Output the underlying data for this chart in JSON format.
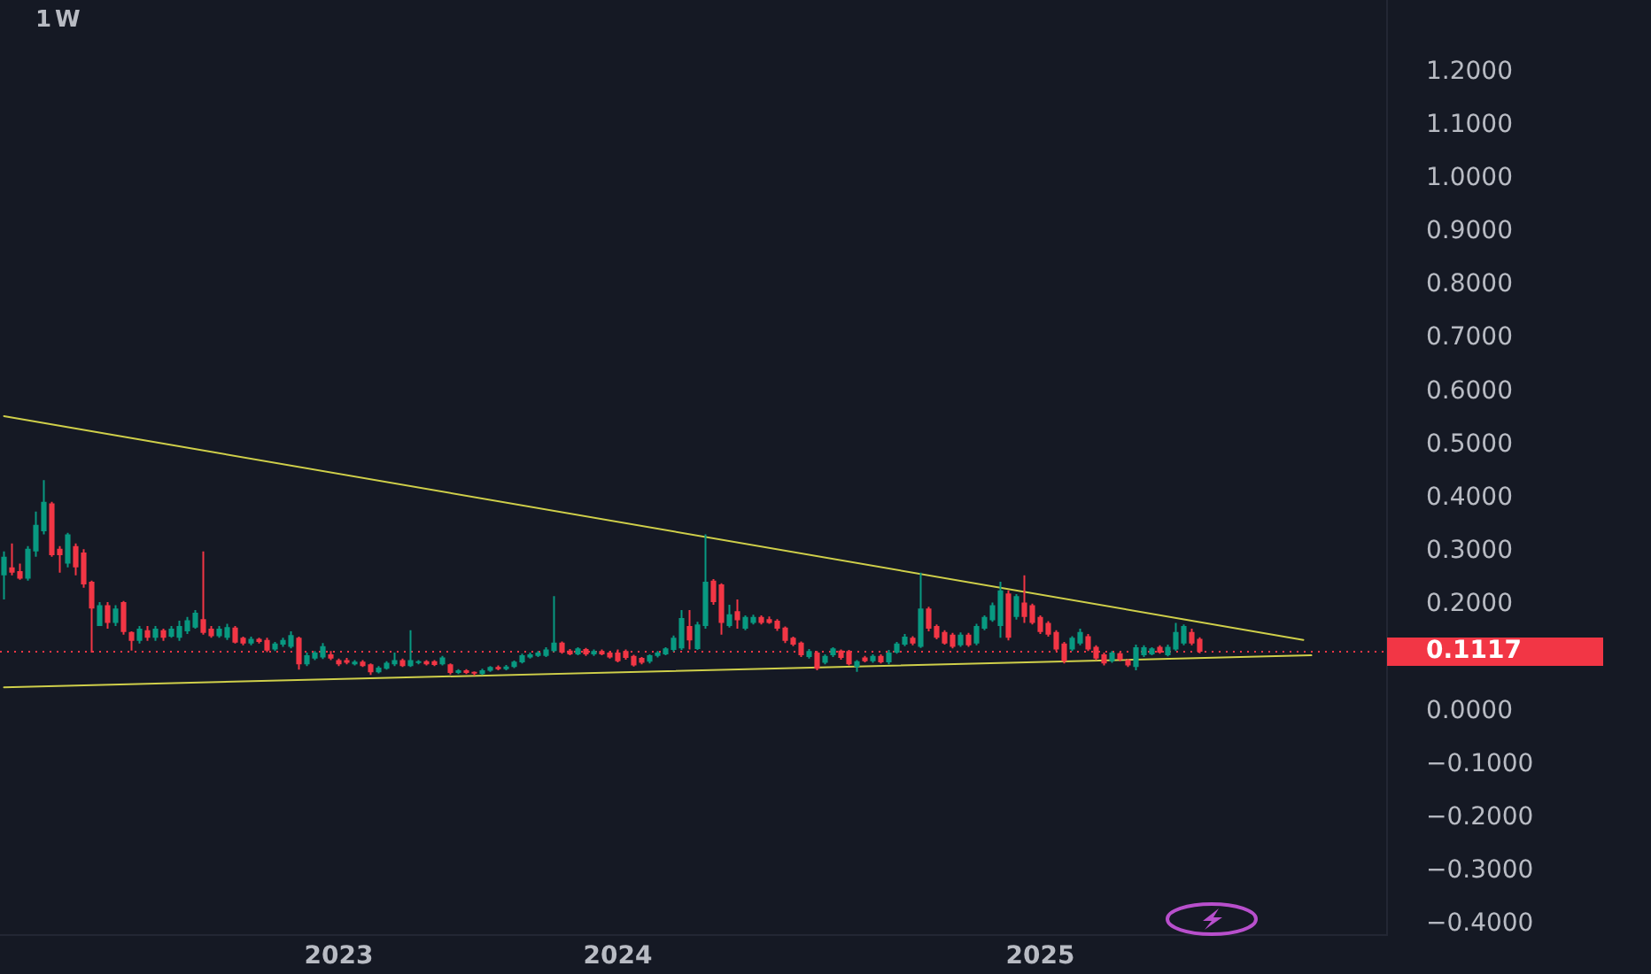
{
  "chart_data": {
    "type": "candlestick",
    "title": "1W",
    "categories": [
      null,
      null,
      null,
      null,
      null,
      null,
      null,
      null,
      null,
      null,
      null,
      null,
      null,
      null,
      null,
      null,
      null,
      null,
      null,
      null,
      null,
      null,
      null,
      null,
      null,
      null,
      null,
      null,
      null,
      null,
      null,
      null,
      null,
      null,
      null,
      null,
      null,
      null,
      null,
      null,
      null,
      null,
      "2023",
      null,
      null,
      null,
      null,
      null,
      null,
      null,
      null,
      null,
      null,
      null,
      null,
      null,
      null,
      null,
      null,
      null,
      null,
      null,
      null,
      null,
      null,
      null,
      null,
      null,
      null,
      null,
      null,
      null,
      null,
      null,
      null,
      null,
      null,
      "2024",
      null,
      null,
      null,
      null,
      null,
      null,
      null,
      null,
      null,
      null,
      null,
      null,
      null,
      null,
      null,
      null,
      null,
      null,
      null,
      null,
      null,
      null,
      null,
      null,
      null,
      null,
      null,
      null,
      null,
      null,
      null,
      null,
      null,
      null,
      null,
      null,
      null,
      null,
      null,
      null,
      null,
      null,
      null,
      null,
      null,
      null,
      null,
      null,
      null,
      null,
      null,
      null,
      "2025",
      null,
      null,
      null,
      null,
      null,
      null,
      null,
      null,
      null,
      null,
      null,
      null,
      null,
      null,
      null,
      null,
      null,
      null,
      null,
      null,
      null,
      null,
      null,
      null,
      null,
      null,
      null,
      null,
      null,
      null,
      null,
      null,
      null,
      null,
      null,
      null,
      null,
      null,
      null,
      null,
      null,
      null,
      null
    ],
    "ohlc": [
      [
        0.255,
        0.3,
        0.21,
        0.29
      ],
      [
        0.27,
        0.315,
        0.255,
        0.26
      ],
      [
        0.263,
        0.277,
        0.247,
        0.249
      ],
      [
        0.249,
        0.31,
        0.245,
        0.305
      ],
      [
        0.3,
        0.375,
        0.29,
        0.35
      ],
      [
        0.338,
        0.434,
        0.332,
        0.393
      ],
      [
        0.39,
        0.393,
        0.29,
        0.293
      ],
      [
        0.305,
        0.31,
        0.26,
        0.293
      ],
      [
        0.277,
        0.335,
        0.27,
        0.332
      ],
      [
        0.31,
        0.315,
        0.255,
        0.27
      ],
      [
        0.298,
        0.304,
        0.232,
        0.238
      ],
      [
        0.243,
        0.245,
        0.11,
        0.193
      ],
      [
        0.16,
        0.205,
        0.16,
        0.199
      ],
      [
        0.199,
        0.205,
        0.155,
        0.166
      ],
      [
        0.166,
        0.199,
        0.16,
        0.193
      ],
      [
        0.205,
        0.207,
        0.144,
        0.149
      ],
      [
        0.149,
        0.15,
        0.114,
        0.132
      ],
      [
        0.132,
        0.16,
        0.127,
        0.155
      ],
      [
        0.152,
        0.16,
        0.132,
        0.138
      ],
      [
        0.138,
        0.16,
        0.132,
        0.155
      ],
      [
        0.152,
        0.155,
        0.132,
        0.138
      ],
      [
        0.14,
        0.16,
        0.138,
        0.155
      ],
      [
        0.138,
        0.17,
        0.132,
        0.16
      ],
      [
        0.15,
        0.177,
        0.145,
        0.171
      ],
      [
        0.157,
        0.19,
        0.155,
        0.185
      ],
      [
        0.173,
        0.3,
        0.144,
        0.147
      ],
      [
        0.155,
        0.16,
        0.138,
        0.141
      ],
      [
        0.141,
        0.16,
        0.138,
        0.155
      ],
      [
        0.138,
        0.164,
        0.134,
        0.158
      ],
      [
        0.157,
        0.16,
        0.127,
        0.129
      ],
      [
        0.138,
        0.14,
        0.124,
        0.127
      ],
      [
        0.127,
        0.14,
        0.124,
        0.136
      ],
      [
        0.136,
        0.138,
        0.127,
        0.13
      ],
      [
        0.134,
        0.138,
        0.111,
        0.114
      ],
      [
        0.116,
        0.13,
        0.113,
        0.127
      ],
      [
        0.125,
        0.138,
        0.121,
        0.134
      ],
      [
        0.121,
        0.15,
        0.118,
        0.143
      ],
      [
        0.138,
        0.14,
        0.078,
        0.088
      ],
      [
        0.088,
        0.11,
        0.085,
        0.105
      ],
      [
        0.099,
        0.113,
        0.096,
        0.11
      ],
      [
        0.101,
        0.128,
        0.098,
        0.122
      ],
      [
        0.107,
        0.113,
        0.096,
        0.099
      ],
      [
        0.096,
        0.099,
        0.085,
        0.088
      ],
      [
        0.096,
        0.1,
        0.088,
        0.091
      ],
      [
        0.088,
        0.096,
        0.086,
        0.093
      ],
      [
        0.093,
        0.096,
        0.083,
        0.085
      ],
      [
        0.088,
        0.09,
        0.068,
        0.073
      ],
      [
        0.073,
        0.085,
        0.071,
        0.082
      ],
      [
        0.08,
        0.094,
        0.078,
        0.091
      ],
      [
        0.088,
        0.11,
        0.085,
        0.096
      ],
      [
        0.096,
        0.099,
        0.083,
        0.085
      ],
      [
        0.085,
        0.152,
        0.083,
        0.096
      ],
      [
        0.091,
        0.096,
        0.088,
        0.094
      ],
      [
        0.094,
        0.096,
        0.086,
        0.088
      ],
      [
        0.094,
        0.096,
        0.085,
        0.087
      ],
      [
        0.088,
        0.104,
        0.086,
        0.101
      ],
      [
        0.088,
        0.09,
        0.069,
        0.072
      ],
      [
        0.072,
        0.079,
        0.07,
        0.077
      ],
      [
        0.077,
        0.079,
        0.07,
        0.072
      ],
      [
        0.074,
        0.075,
        0.067,
        0.071
      ],
      [
        0.07,
        0.08,
        0.068,
        0.077
      ],
      [
        0.076,
        0.085,
        0.074,
        0.083
      ],
      [
        0.083,
        0.086,
        0.077,
        0.079
      ],
      [
        0.079,
        0.087,
        0.077,
        0.084
      ],
      [
        0.083,
        0.095,
        0.081,
        0.093
      ],
      [
        0.092,
        0.108,
        0.09,
        0.105
      ],
      [
        0.101,
        0.11,
        0.099,
        0.107
      ],
      [
        0.104,
        0.113,
        0.102,
        0.11
      ],
      [
        0.104,
        0.12,
        0.102,
        0.116
      ],
      [
        0.113,
        0.216,
        0.111,
        0.129
      ],
      [
        0.129,
        0.131,
        0.108,
        0.11
      ],
      [
        0.114,
        0.117,
        0.105,
        0.107
      ],
      [
        0.107,
        0.12,
        0.105,
        0.118
      ],
      [
        0.117,
        0.119,
        0.104,
        0.107
      ],
      [
        0.107,
        0.116,
        0.104,
        0.113
      ],
      [
        0.113,
        0.116,
        0.105,
        0.107
      ],
      [
        0.11,
        0.113,
        0.099,
        0.101
      ],
      [
        0.11,
        0.116,
        0.092,
        0.094
      ],
      [
        0.113,
        0.116,
        0.097,
        0.1
      ],
      [
        0.104,
        0.106,
        0.084,
        0.086
      ],
      [
        0.1,
        0.102,
        0.088,
        0.091
      ],
      [
        0.093,
        0.107,
        0.09,
        0.105
      ],
      [
        0.104,
        0.113,
        0.101,
        0.11
      ],
      [
        0.107,
        0.12,
        0.105,
        0.118
      ],
      [
        0.115,
        0.142,
        0.112,
        0.138
      ],
      [
        0.118,
        0.19,
        0.115,
        0.175
      ],
      [
        0.16,
        0.19,
        0.116,
        0.133
      ],
      [
        0.117,
        0.168,
        0.115,
        0.163
      ],
      [
        0.16,
        0.332,
        0.155,
        0.243
      ],
      [
        0.245,
        0.248,
        0.2,
        0.205
      ],
      [
        0.238,
        0.24,
        0.144,
        0.166
      ],
      [
        0.16,
        0.2,
        0.157,
        0.182
      ],
      [
        0.188,
        0.21,
        0.155,
        0.171
      ],
      [
        0.155,
        0.18,
        0.152,
        0.177
      ],
      [
        0.166,
        0.181,
        0.163,
        0.177
      ],
      [
        0.177,
        0.18,
        0.163,
        0.166
      ],
      [
        0.173,
        0.178,
        0.164,
        0.166
      ],
      [
        0.17,
        0.173,
        0.151,
        0.155
      ],
      [
        0.157,
        0.159,
        0.128,
        0.132
      ],
      [
        0.138,
        0.14,
        0.122,
        0.125
      ],
      [
        0.129,
        0.131,
        0.102,
        0.105
      ],
      [
        0.102,
        0.117,
        0.099,
        0.113
      ],
      [
        0.11,
        0.113,
        0.077,
        0.08
      ],
      [
        0.091,
        0.107,
        0.088,
        0.104
      ],
      [
        0.105,
        0.12,
        0.102,
        0.118
      ],
      [
        0.114,
        0.116,
        0.097,
        0.1
      ],
      [
        0.113,
        0.115,
        0.086,
        0.088
      ],
      [
        0.083,
        0.096,
        0.074,
        0.094
      ],
      [
        0.101,
        0.104,
        0.092,
        0.094
      ],
      [
        0.094,
        0.107,
        0.091,
        0.104
      ],
      [
        0.104,
        0.107,
        0.09,
        0.092
      ],
      [
        0.092,
        0.115,
        0.088,
        0.11
      ],
      [
        0.11,
        0.13,
        0.108,
        0.127
      ],
      [
        0.125,
        0.145,
        0.122,
        0.14
      ],
      [
        0.138,
        0.141,
        0.124,
        0.127
      ],
      [
        0.121,
        0.26,
        0.119,
        0.193
      ],
      [
        0.193,
        0.196,
        0.15,
        0.155
      ],
      [
        0.16,
        0.163,
        0.135,
        0.138
      ],
      [
        0.149,
        0.152,
        0.125,
        0.127
      ],
      [
        0.144,
        0.147,
        0.118,
        0.121
      ],
      [
        0.124,
        0.148,
        0.121,
        0.144
      ],
      [
        0.144,
        0.147,
        0.121,
        0.124
      ],
      [
        0.127,
        0.164,
        0.124,
        0.16
      ],
      [
        0.155,
        0.18,
        0.152,
        0.177
      ],
      [
        0.171,
        0.204,
        0.168,
        0.199
      ],
      [
        0.16,
        0.243,
        0.138,
        0.227
      ],
      [
        0.221,
        0.227,
        0.133,
        0.138
      ],
      [
        0.177,
        0.22,
        0.172,
        0.216
      ],
      [
        0.204,
        0.255,
        0.166,
        0.177
      ],
      [
        0.199,
        0.202,
        0.163,
        0.166
      ],
      [
        0.177,
        0.18,
        0.145,
        0.149
      ],
      [
        0.166,
        0.169,
        0.14,
        0.144
      ],
      [
        0.149,
        0.152,
        0.113,
        0.116
      ],
      [
        0.127,
        0.13,
        0.09,
        0.094
      ],
      [
        0.116,
        0.141,
        0.113,
        0.138
      ],
      [
        0.127,
        0.155,
        0.124,
        0.149
      ],
      [
        0.141,
        0.145,
        0.113,
        0.116
      ],
      [
        0.121,
        0.124,
        0.096,
        0.099
      ],
      [
        0.107,
        0.11,
        0.086,
        0.09
      ],
      [
        0.094,
        0.113,
        0.091,
        0.11
      ],
      [
        0.109,
        0.111,
        0.094,
        0.097
      ],
      [
        0.096,
        0.098,
        0.083,
        0.086
      ],
      [
        0.083,
        0.125,
        0.077,
        0.12
      ],
      [
        0.105,
        0.124,
        0.102,
        0.12
      ],
      [
        0.107,
        0.12,
        0.105,
        0.118
      ],
      [
        0.121,
        0.124,
        0.108,
        0.11
      ],
      [
        0.105,
        0.125,
        0.103,
        0.121
      ],
      [
        0.116,
        0.166,
        0.113,
        0.149
      ],
      [
        0.127,
        0.163,
        0.124,
        0.16
      ],
      [
        0.149,
        0.155,
        0.124,
        0.127
      ],
      [
        0.136,
        0.139,
        0.109,
        0.1117
      ],
      null,
      null,
      null,
      null,
      null,
      null,
      null,
      null,
      null,
      null,
      null,
      null,
      null,
      null,
      null,
      null,
      null,
      null,
      null,
      null,
      null,
      null,
      null
    ],
    "colors": [
      "#089981",
      "#f23645",
      "#f23645",
      "#089981",
      "#089981",
      "#089981",
      "#f23645",
      "#f23645",
      "#089981",
      "#f23645",
      "#f23645",
      "#f23645",
      "#089981",
      "#f23645",
      "#089981",
      "#f23645",
      "#f23645",
      "#089981",
      "#f23645",
      "#089981",
      "#f23645",
      "#089981",
      "#089981",
      "#089981",
      "#089981",
      "#f23645",
      "#f23645",
      "#089981",
      "#089981",
      "#f23645",
      "#f23645",
      "#089981",
      "#f23645",
      "#f23645",
      "#089981",
      "#089981",
      "#089981",
      "#f23645",
      "#089981",
      "#089981",
      "#089981",
      "#f23645",
      "#f23645",
      "#f23645",
      "#089981",
      "#f23645",
      "#f23645",
      "#089981",
      "#089981",
      "#089981",
      "#f23645",
      "#089981",
      "#089981",
      "#f23645",
      "#f23645",
      "#089981",
      "#f23645",
      "#089981",
      "#f23645",
      "#f23645",
      "#089981",
      "#089981",
      "#f23645",
      "#089981",
      "#089981",
      "#089981",
      "#089981",
      "#089981",
      "#089981",
      "#089981",
      "#f23645",
      "#f23645",
      "#089981",
      "#f23645",
      "#089981",
      "#f23645",
      "#f23645",
      "#f23645",
      "#f23645",
      "#f23645",
      "#f23645",
      "#089981",
      "#089981",
      "#089981",
      "#089981",
      "#089981",
      "#f23645",
      "#089981",
      "#089981",
      "#f23645",
      "#f23645",
      "#089981",
      "#f23645",
      "#089981",
      "#089981",
      "#f23645",
      "#f23645",
      "#f23645",
      "#f23645",
      "#f23645",
      "#f23645",
      "#089981",
      "#f23645",
      "#089981",
      "#089981",
      "#f23645",
      "#f23645",
      "#089981",
      "#f23645",
      "#089981",
      "#f23645",
      "#089981",
      "#089981",
      "#089981",
      "#f23645",
      "#089981",
      "#f23645",
      "#f23645",
      "#f23645",
      "#f23645",
      "#089981",
      "#f23645",
      "#089981",
      "#089981",
      "#089981",
      "#089981",
      "#f23645",
      "#089981",
      "#f23645",
      "#f23645",
      "#f23645",
      "#f23645",
      "#f23645",
      "#f23645",
      "#089981",
      "#089981",
      "#f23645",
      "#f23645",
      "#f23645",
      "#089981",
      "#f23645",
      "#f23645",
      "#089981",
      "#089981",
      "#089981",
      "#f23645",
      "#089981",
      "#089981",
      "#089981",
      "#f23645",
      "#f23645",
      null,
      null,
      null,
      null,
      null,
      null,
      null,
      null,
      null,
      null,
      null,
      null,
      null,
      null,
      null,
      null,
      null,
      null,
      null,
      null,
      null,
      null,
      null
    ],
    "series": [
      {
        "type": "line",
        "color": "#cfcf4a",
        "values": [
          0.554,
          null,
          null,
          null,
          null,
          null,
          null,
          null,
          null,
          null,
          null,
          null,
          null,
          null,
          null,
          null,
          null,
          null,
          null,
          null,
          null,
          null,
          null,
          null,
          null,
          null,
          null,
          null,
          null,
          null,
          null,
          null,
          null,
          null,
          null,
          null,
          null,
          null,
          null,
          null,
          null,
          null,
          null,
          null,
          null,
          null,
          null,
          null,
          null,
          null,
          null,
          null,
          null,
          null,
          null,
          null,
          null,
          null,
          null,
          null,
          null,
          null,
          null,
          null,
          null,
          null,
          null,
          null,
          null,
          null,
          null,
          null,
          null,
          null,
          null,
          null,
          null,
          null,
          null,
          null,
          null,
          null,
          null,
          null,
          null,
          null,
          null,
          null,
          null,
          null,
          null,
          null,
          null,
          null,
          null,
          null,
          null,
          null,
          null,
          null,
          null,
          null,
          null,
          null,
          null,
          null,
          null,
          null,
          null,
          null,
          null,
          null,
          null,
          null,
          null,
          null,
          null,
          null,
          null,
          null,
          null,
          null,
          null,
          null,
          null,
          null,
          null,
          null,
          null,
          null,
          null,
          null,
          null,
          null,
          null,
          null,
          null,
          null,
          null,
          null,
          null,
          null,
          null,
          null,
          null,
          null,
          null,
          null,
          null,
          null,
          null,
          null,
          null,
          null,
          null,
          null,
          null,
          null,
          null,
          null,
          null,
          null,
          null,
          0.134,
          null,
          null,
          null,
          null,
          null,
          null,
          null,
          null,
          null,
          null
        ]
      },
      {
        "type": "line",
        "color": "#cfcf4a",
        "values": [
          0.045,
          null,
          null,
          null,
          null,
          null,
          null,
          null,
          null,
          null,
          null,
          null,
          null,
          null,
          null,
          null,
          null,
          null,
          null,
          null,
          null,
          null,
          null,
          null,
          null,
          null,
          null,
          null,
          null,
          null,
          null,
          null,
          null,
          null,
          null,
          null,
          null,
          null,
          null,
          null,
          null,
          null,
          null,
          null,
          null,
          null,
          null,
          null,
          null,
          null,
          null,
          null,
          null,
          null,
          null,
          null,
          null,
          null,
          null,
          null,
          null,
          null,
          null,
          null,
          null,
          null,
          null,
          null,
          null,
          null,
          null,
          null,
          null,
          null,
          null,
          null,
          null,
          null,
          null,
          null,
          null,
          null,
          null,
          null,
          null,
          null,
          null,
          null,
          null,
          null,
          null,
          null,
          null,
          null,
          null,
          null,
          null,
          null,
          null,
          null,
          null,
          null,
          null,
          null,
          null,
          null,
          null,
          null,
          null,
          null,
          null,
          null,
          null,
          null,
          null,
          null,
          null,
          null,
          null,
          null,
          null,
          null,
          null,
          null,
          null,
          null,
          null,
          null,
          null,
          null,
          null,
          null,
          null,
          null,
          null,
          null,
          null,
          null,
          null,
          null,
          null,
          null,
          null,
          null,
          null,
          null,
          null,
          null,
          null,
          null,
          null,
          null,
          null,
          null,
          null,
          null,
          null,
          null,
          null,
          null,
          null,
          null,
          null,
          null,
          0.105,
          null,
          null,
          null,
          null,
          null,
          null,
          null,
          null,
          null
        ]
      }
    ],
    "ylim": [
      -0.42,
      1.335
    ],
    "yticks": [
      {
        "value": -0.4,
        "label": "−0.4000"
      },
      {
        "value": -0.3,
        "label": "−0.3000"
      },
      {
        "value": -0.2,
        "label": "−0.2000"
      },
      {
        "value": -0.1,
        "label": "−0.1000"
      },
      {
        "value": 0,
        "label": "0.0000"
      },
      {
        "value": 0.2,
        "label": "0.2000"
      },
      {
        "value": 0.3,
        "label": "0.3000"
      },
      {
        "value": 0.4,
        "label": "0.4000"
      },
      {
        "value": 0.5,
        "label": "0.5000"
      },
      {
        "value": 0.6,
        "label": "0.6000"
      },
      {
        "value": 0.7,
        "label": "0.7000"
      },
      {
        "value": 0.8,
        "label": "0.8000"
      },
      {
        "value": 0.9,
        "label": "0.9000"
      },
      {
        "value": 1,
        "label": "1.0000"
      },
      {
        "value": 1.1,
        "label": "1.1000"
      },
      {
        "value": 1.2,
        "label": "1.2000"
      }
    ],
    "grid": false,
    "legend": false,
    "ref_lines": [
      {
        "axis": "y",
        "value": 0.1117,
        "label": "0.1117",
        "color": "#f23645",
        "line_style": "dotted"
      }
    ]
  }
}
